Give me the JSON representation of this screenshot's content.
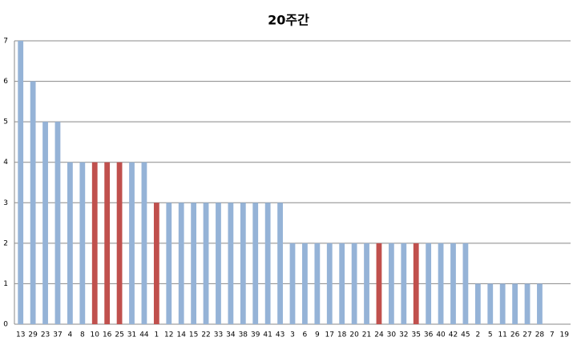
{
  "chart_data": {
    "type": "bar",
    "title": "20주간",
    "categories": [
      "13",
      "29",
      "23",
      "37",
      "4",
      "8",
      "10",
      "16",
      "25",
      "31",
      "44",
      "1",
      "12",
      "14",
      "15",
      "22",
      "33",
      "34",
      "38",
      "39",
      "41",
      "43",
      "3",
      "6",
      "9",
      "17",
      "18",
      "20",
      "21",
      "24",
      "30",
      "32",
      "35",
      "36",
      "40",
      "42",
      "45",
      "2",
      "5",
      "11",
      "26",
      "27",
      "28",
      "7",
      "19"
    ],
    "values": [
      7,
      6,
      5,
      5,
      4,
      4,
      4,
      4,
      4,
      4,
      4,
      3,
      3,
      3,
      3,
      3,
      3,
      3,
      3,
      3,
      3,
      3,
      2,
      2,
      2,
      2,
      2,
      2,
      2,
      2,
      2,
      2,
      2,
      2,
      2,
      2,
      2,
      1,
      1,
      1,
      1,
      1,
      1,
      0,
      0
    ],
    "colors": [
      "#95b3d7",
      "#95b3d7",
      "#95b3d7",
      "#95b3d7",
      "#95b3d7",
      "#95b3d7",
      "#c0504d",
      "#c0504d",
      "#c0504d",
      "#95b3d7",
      "#95b3d7",
      "#c0504d",
      "#95b3d7",
      "#95b3d7",
      "#95b3d7",
      "#95b3d7",
      "#95b3d7",
      "#95b3d7",
      "#95b3d7",
      "#95b3d7",
      "#95b3d7",
      "#95b3d7",
      "#95b3d7",
      "#95b3d7",
      "#95b3d7",
      "#95b3d7",
      "#95b3d7",
      "#95b3d7",
      "#95b3d7",
      "#c0504d",
      "#95b3d7",
      "#95b3d7",
      "#c0504d",
      "#95b3d7",
      "#95b3d7",
      "#95b3d7",
      "#95b3d7",
      "#95b3d7",
      "#95b3d7",
      "#95b3d7",
      "#95b3d7",
      "#95b3d7",
      "#95b3d7",
      "#95b3d7",
      "#95b3d7"
    ],
    "ylim": [
      0,
      7
    ],
    "yticks": [
      0,
      1,
      2,
      3,
      4,
      5,
      6,
      7
    ],
    "grid": true
  }
}
